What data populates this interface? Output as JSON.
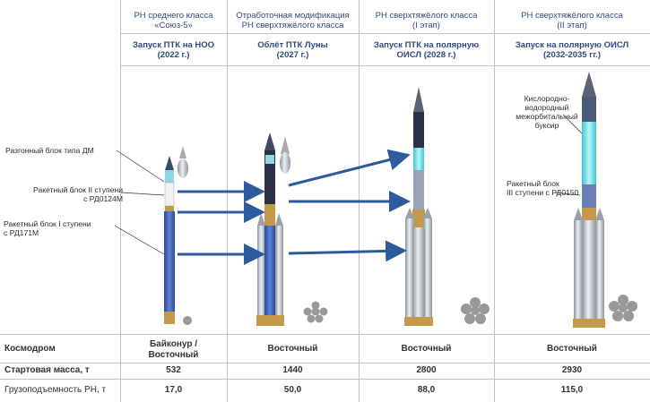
{
  "columns": [
    {
      "title": "РН среднего класса\n«Союз-5»",
      "subtitle": "Запуск ПТК на НОО\n(2022 г.)"
    },
    {
      "title": "Отработочная модификация\nРН сверхтяжёлого класса",
      "subtitle": "Облёт ПТК Луны\n(2027 г.)"
    },
    {
      "title": "РН сверхтяжёлого класса\n(I этап)",
      "subtitle": "Запуск ПТК на полярную\nОИСЛ (2028 г.)"
    },
    {
      "title": "РН сверхтяжёлого класса\n(II этап)",
      "subtitle": "Запуск на полярную ОИСЛ\n(2032-2035 гг.)"
    }
  ],
  "callouts": {
    "upper_stage": "Разгонный блок типа ДМ",
    "stage2": "Ракетный блок II ступени\nс РД0124М",
    "stage1": "Ракетный блок I ступени\nс РД171М",
    "tug": "Кислородно-\nводородный\nмежорбитальный\nбуксир",
    "stage3": "Ракетный блок\nIII ступени с РД0150"
  },
  "table": {
    "rows": [
      {
        "label": "Космодром",
        "values": [
          "Байконур /\nВосточный",
          "Восточный",
          "Восточный",
          "Восточный"
        ]
      },
      {
        "label": "Стартовая масса, т",
        "values": [
          "532",
          "1440",
          "2800",
          "2930"
        ]
      },
      {
        "label": "Грузоподъемность РН, т",
        "values": [
          "17,0",
          "50,0",
          "88,0",
          "115,0"
        ]
      }
    ]
  },
  "colors": {
    "header_text": "#2f4a7a",
    "arrow": "#2e5b9e",
    "rocket_blue": "#3d63b8",
    "rocket_grey": "#b9bec6",
    "cyan": "#7fe6f0"
  }
}
